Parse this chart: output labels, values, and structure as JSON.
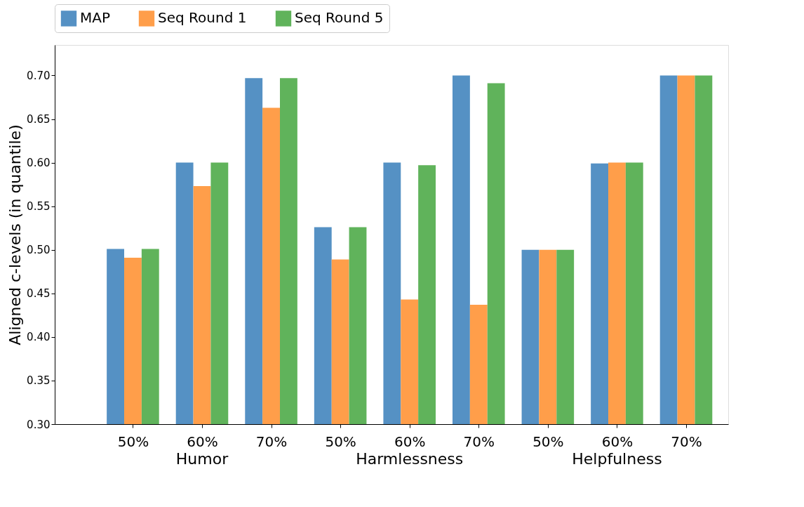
{
  "chart_data": {
    "type": "bar",
    "ylabel": "Aligned c-levels (in quantile)",
    "categories": [
      "50%",
      "60%",
      "70%",
      "50%",
      "60%",
      "70%",
      "50%",
      "60%",
      "70%"
    ],
    "annotations": [
      "Humor",
      "Harmlessness",
      "Helpfulness"
    ],
    "series": [
      {
        "name": "MAP",
        "color": "#5591c4",
        "values": [
          0.501,
          0.6,
          0.697,
          0.526,
          0.6,
          0.7,
          0.5,
          0.599,
          0.7
        ]
      },
      {
        "name": "Seq Round 1",
        "color": "#ff9e4a",
        "values": [
          0.491,
          0.573,
          0.663,
          0.489,
          0.443,
          0.437,
          0.5,
          0.6,
          0.7
        ]
      },
      {
        "name": "Seq Round 5",
        "color": "#60b35b",
        "values": [
          0.501,
          0.6,
          0.697,
          0.526,
          0.597,
          0.691,
          0.5,
          0.6,
          0.7
        ]
      }
    ],
    "ylim": [
      0.3,
      0.735
    ],
    "yticks": [
      {
        "value": 0.3,
        "label": "0.30"
      },
      {
        "value": 0.35,
        "label": "0.35"
      },
      {
        "value": 0.4,
        "label": "0.40"
      },
      {
        "value": 0.45,
        "label": "0.45"
      },
      {
        "value": 0.5,
        "label": "0.50"
      },
      {
        "value": 0.55,
        "label": "0.55"
      },
      {
        "value": 0.6,
        "label": "0.60"
      },
      {
        "value": 0.65,
        "label": "0.65"
      },
      {
        "value": 0.7,
        "label": "0.70"
      }
    ],
    "grid": false,
    "legend": "top"
  }
}
